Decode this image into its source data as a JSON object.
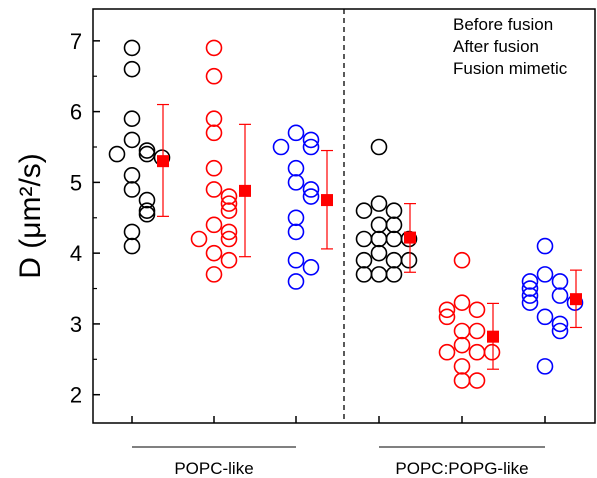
{
  "chart_data": {
    "type": "scatter",
    "ylabel": "D (μm²/s)",
    "ylim": [
      1.6,
      7.45
    ],
    "yticks": [
      2,
      3,
      4,
      5,
      6,
      7
    ],
    "legend_position": "top-right",
    "groups": [
      "POPC-like",
      "POPC:POPG-like"
    ],
    "series": [
      {
        "name": "Before fusion",
        "color": "#000000"
      },
      {
        "name": "After fusion",
        "color": "#ff0000"
      },
      {
        "name": "Fusion mimetic",
        "color": "#0000ff"
      }
    ],
    "point_groups": [
      {
        "group": 0,
        "series": 0,
        "values": [
          6.9,
          6.6,
          5.9,
          5.6,
          5.45,
          5.4,
          5.4,
          5.35,
          5.1,
          4.9,
          4.75,
          4.6,
          4.55,
          4.3,
          4.1
        ],
        "mean": 5.3,
        "err_low": 4.52,
        "err_high": 6.1
      },
      {
        "group": 0,
        "series": 1,
        "values": [
          6.9,
          6.5,
          5.9,
          5.7,
          5.2,
          4.9,
          4.8,
          4.7,
          4.6,
          4.4,
          4.3,
          4.2,
          4.2,
          4.0,
          3.9,
          3.7
        ],
        "mean": 4.88,
        "err_low": 3.95,
        "err_high": 5.82
      },
      {
        "group": 0,
        "series": 2,
        "values": [
          5.7,
          5.6,
          5.5,
          5.5,
          5.2,
          5.0,
          4.9,
          4.8,
          4.5,
          4.3,
          3.9,
          3.8,
          3.6
        ],
        "mean": 4.75,
        "err_low": 4.06,
        "err_high": 5.45
      },
      {
        "group": 1,
        "series": 0,
        "values": [
          5.5,
          4.7,
          4.6,
          4.6,
          4.4,
          4.4,
          4.2,
          4.2,
          4.2,
          4.2,
          4.0,
          3.9,
          3.9,
          3.9,
          3.7,
          3.7,
          3.7
        ],
        "mean": 4.22,
        "err_low": 3.73,
        "err_high": 4.7
      },
      {
        "group": 1,
        "series": 1,
        "values": [
          3.9,
          3.3,
          3.2,
          3.2,
          3.1,
          2.9,
          2.9,
          2.7,
          2.6,
          2.6,
          2.6,
          2.4,
          2.2,
          2.2
        ],
        "mean": 2.82,
        "err_low": 2.36,
        "err_high": 3.29
      },
      {
        "group": 1,
        "series": 2,
        "values": [
          4.1,
          3.7,
          3.6,
          3.6,
          3.5,
          3.4,
          3.4,
          3.3,
          3.3,
          3.1,
          3.0,
          2.9,
          2.4
        ],
        "mean": 3.35,
        "err_low": 2.95,
        "err_high": 3.76
      }
    ]
  }
}
